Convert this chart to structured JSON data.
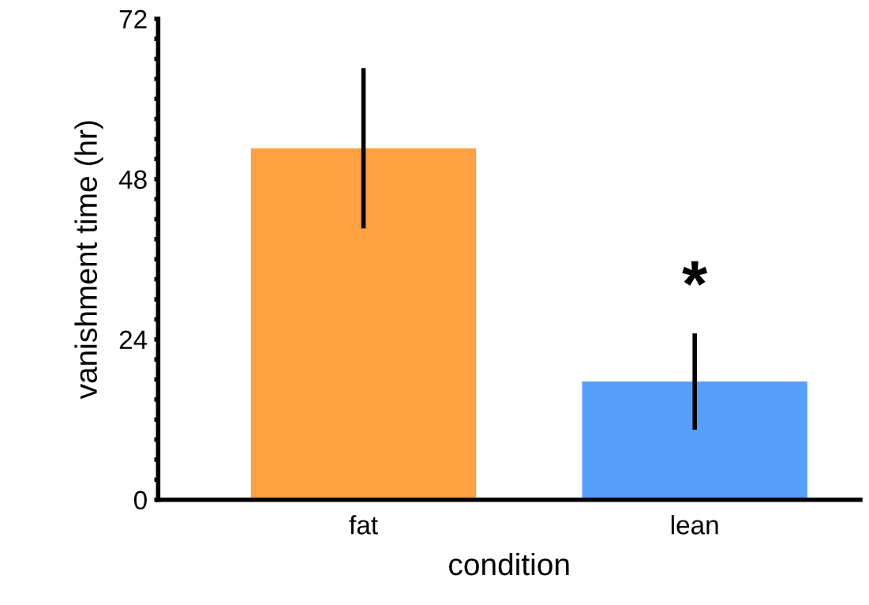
{
  "chart_data": {
    "type": "bar",
    "xlabel": "condition",
    "ylabel": "vanishment time (hr)",
    "categories": [
      "fat",
      "lean"
    ],
    "values": [
      52.6,
      17.7
    ],
    "errors": [
      12,
      7.2
    ],
    "colors": [
      "#ffa043",
      "#56a0fb"
    ],
    "ylim": [
      0,
      72
    ],
    "yticks": [
      0,
      {
        "value": 3,
        "label": null
      },
      {
        "value": 6,
        "label": null
      },
      {
        "value": 9,
        "label": null
      },
      {
        "value": 12,
        "label": null
      },
      {
        "value": 15,
        "label": null
      },
      {
        "value": 18,
        "label": null
      },
      {
        "value": 21,
        "label": null
      },
      24,
      {
        "value": 27,
        "label": null
      },
      {
        "value": 30,
        "label": null
      },
      {
        "value": 33,
        "label": null
      },
      {
        "value": 36,
        "label": null
      },
      {
        "value": 39,
        "label": null
      },
      {
        "value": 42,
        "label": null
      },
      {
        "value": 45,
        "label": null
      },
      48,
      {
        "value": 51,
        "label": null
      },
      {
        "value": 54,
        "label": null
      },
      {
        "value": 57,
        "label": null
      },
      {
        "value": 60,
        "label": null
      },
      {
        "value": 63,
        "label": null
      },
      {
        "value": 66,
        "label": null
      },
      {
        "value": 69,
        "label": null
      },
      72
    ],
    "annotations": [
      "*"
    ],
    "grid": false,
    "legend": false
  }
}
